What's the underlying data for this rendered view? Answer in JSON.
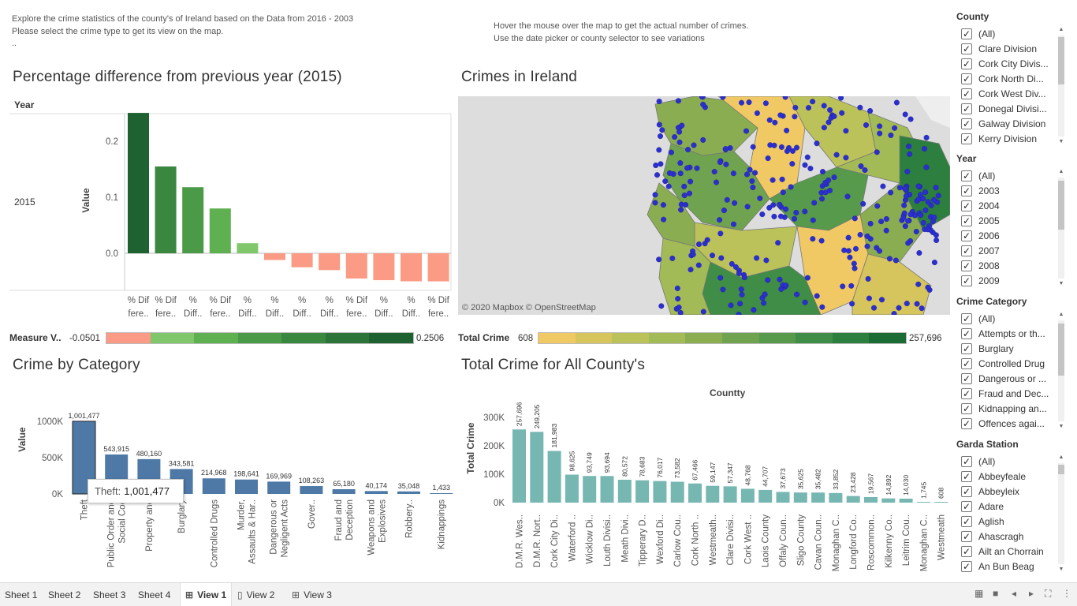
{
  "intro_left": "Explore the crime statistics of the county's of Ireland based on the Data from 2016 - 2003\nPlease select the crime type to get its view on the map.\n..",
  "intro_right": "Hover the mouse over the map to get the actual number of crimes.\nUse the date picker or county selector to see variations",
  "pct_panel": {
    "title": "Percentage difference from previous year (2015)",
    "row_header": "Year",
    "row_label": "2015",
    "y_axis_title": "Value",
    "legend_label": "Measure V..",
    "legend_min": "-0.0501",
    "legend_max": "0.2506",
    "legend_colors": [
      "#fb9a85",
      "#80c76b",
      "#5fb050",
      "#4a9a48",
      "#3a8740",
      "#2d7438",
      "#1e6232"
    ]
  },
  "map_panel": {
    "title": "Crimes in Ireland",
    "attribution": "© 2020 Mapbox © OpenStreetMap",
    "legend_label": "Total Crime",
    "legend_min": "608",
    "legend_max": "257,696",
    "legend_colors": [
      "#f0c965",
      "#d6c45d",
      "#bcc25a",
      "#a3bb57",
      "#8aad52",
      "#6fa34f",
      "#579a4b",
      "#3f8d46",
      "#2c7f3f",
      "#1b6b34"
    ]
  },
  "cat_panel": {
    "title": "Crime by Category",
    "y_axis_title": "Value",
    "tooltip_label": "Theft:",
    "tooltip_value": "1,001,477"
  },
  "county_panel": {
    "title": "Total Crime for All County's",
    "header": "Countty",
    "y_axis_title": "Total Crime"
  },
  "filters": {
    "county": {
      "title": "County",
      "items": [
        "(All)",
        "Clare Division",
        "Cork City Divis...",
        "Cork North Di...",
        "Cork West Div...",
        "Donegal Divisi...",
        "Galway Division",
        "Kerry Division"
      ]
    },
    "year": {
      "title": "Year",
      "items": [
        "(All)",
        "2003",
        "2004",
        "2005",
        "2006",
        "2007",
        "2008",
        "2009"
      ]
    },
    "crime_category": {
      "title": "Crime Category",
      "items": [
        "(All)",
        "Attempts or th...",
        "Burglary",
        "Controlled Drug",
        "Dangerous or ...",
        "Fraud and Dec...",
        "Kidnapping an...",
        "Offences agai..."
      ]
    },
    "garda_station": {
      "title": "Garda Station",
      "items": [
        "(All)",
        "Abbeyfeale",
        "Abbeylеix",
        "Adare",
        "Aglish",
        "Ahascragh",
        "Ailt an Chorrain",
        "An Bun Beag"
      ]
    }
  },
  "tabs": [
    {
      "label": "Sheet 1",
      "icon": ""
    },
    {
      "label": "Sheet 2",
      "icon": ""
    },
    {
      "label": "Sheet 3",
      "icon": ""
    },
    {
      "label": "Sheet 4",
      "icon": ""
    },
    {
      "label": "View 1",
      "icon": "dashboard-icon",
      "active": true
    },
    {
      "label": "View 2",
      "icon": "story-icon"
    },
    {
      "label": "View 3",
      "icon": "dashboard-icon"
    }
  ],
  "chart_data": [
    {
      "type": "bar",
      "title": "Percentage difference from previous year (2015)",
      "ylabel": "Value",
      "ylim": [
        -0.06,
        0.24
      ],
      "yticks": [
        "0.0",
        "0.1",
        "0.2"
      ],
      "categories": [
        "% Dif fere..",
        "% Dif fere..",
        "% Diff..",
        "% Dif fere..",
        "% Diff..",
        "% Diff..",
        "% Diff..",
        "% Diff..",
        "% Dif fere..",
        "% Diff..",
        "% Diff..",
        "% Dif fere.."
      ],
      "category_lines": [
        [
          "% Dif",
          "fere.."
        ],
        [
          "% Dif",
          "fere.."
        ],
        [
          "%",
          "Diff.."
        ],
        [
          "% Dif",
          "fere.."
        ],
        [
          "%",
          "Diff.."
        ],
        [
          "%",
          "Diff.."
        ],
        [
          "%",
          "Diff.."
        ],
        [
          "%",
          "Diff.."
        ],
        [
          "% Dif",
          "fere.."
        ],
        [
          "%",
          "Diff.."
        ],
        [
          "%",
          "Diff.."
        ],
        [
          "% Dif",
          "fere.."
        ]
      ],
      "values": [
        0.2506,
        0.155,
        0.118,
        0.08,
        0.018,
        -0.012,
        -0.025,
        -0.03,
        -0.045,
        -0.048,
        -0.05,
        -0.0501
      ]
    },
    {
      "type": "bar",
      "title": "Crime by Category",
      "ylabel": "Value",
      "ylim": [
        0,
        1100000
      ],
      "yticks": [
        "0K",
        "500K",
        "1000K"
      ],
      "categories": [
        "Theft",
        "Public Order and Social Cod",
        "Property and",
        "Burglary",
        "Controlled Drugs",
        "Murder, Assaults & Har..",
        "Dangerous or Negligent Acts",
        "Gover..",
        "Fraud and Deception",
        "Weapons and Explosives",
        "Robbery..",
        "Kidnappings"
      ],
      "category_lines": [
        [
          "Theft"
        ],
        [
          "Public Order and",
          "Social Cod"
        ],
        [
          "Property and"
        ],
        [
          "Burglary"
        ],
        [
          "Controlled Drugs"
        ],
        [
          "Murder,",
          "Assaults & Har.."
        ],
        [
          "Dangerous or",
          "Negligent Acts"
        ],
        [
          "Gover.."
        ],
        [
          "Fraud and",
          "Deception"
        ],
        [
          "Weapons and",
          "Explosives"
        ],
        [
          "Robbery.."
        ],
        [
          "Kidnappings"
        ]
      ],
      "values": [
        1001477,
        543915,
        480160,
        343581,
        214968,
        198641,
        169969,
        108263,
        65180,
        40174,
        35048,
        1433
      ],
      "data_labels": [
        "1,001,477",
        "543,915",
        "480,160",
        "343,581",
        "214,968",
        "198,641",
        "169,969",
        "108,263",
        "65,180",
        "40,174",
        "35,048",
        "1,433"
      ]
    },
    {
      "type": "bar",
      "title": "Total Crime for All County's",
      "xlabel": "Countty",
      "ylabel": "Total Crime",
      "ylim": [
        0,
        270000
      ],
      "yticks": [
        "0K",
        "100K",
        "200K",
        "300K"
      ],
      "categories": [
        "D.M.R. Wes..",
        "D.M.R. Nort..",
        "Cork City Di..",
        "Waterford ..",
        "Wicklow Di..",
        "Louth Divisi..",
        "Meath Divi..",
        "Tipperary D..",
        "Wexford Di..",
        "Carlow Cou..",
        "Cork North ..",
        "Westmeath..",
        "Clare Divisi..",
        "Cork West ..",
        "Laois County",
        "Offaly Coun..",
        "Sligo County",
        "Cavan Coun..",
        "Monaghan C..",
        "Longford Co..",
        "Roscommon..",
        "Kilkenny Co..",
        "Leitrim Cou..",
        "Monaghan C..",
        "Westmeath"
      ],
      "values": [
        257696,
        249205,
        181983,
        98625,
        93749,
        93694,
        80572,
        78683,
        76017,
        73582,
        67466,
        59147,
        57347,
        48768,
        44707,
        37673,
        35625,
        35482,
        33852,
        23428,
        19567,
        14892,
        14030,
        1745,
        608
      ],
      "data_labels": [
        "257,696",
        "249,205",
        "181,983",
        "98,625",
        "93,749",
        "93,694",
        "80,572",
        "78,683",
        "76,017",
        "73,582",
        "67,466",
        "59,147",
        "57,347",
        "48,768",
        "44,707",
        "37,673",
        "35,625",
        "35,482",
        "33,852",
        "23,428",
        "19,567",
        "14,892",
        "14,030",
        "1,745",
        "608"
      ]
    }
  ]
}
